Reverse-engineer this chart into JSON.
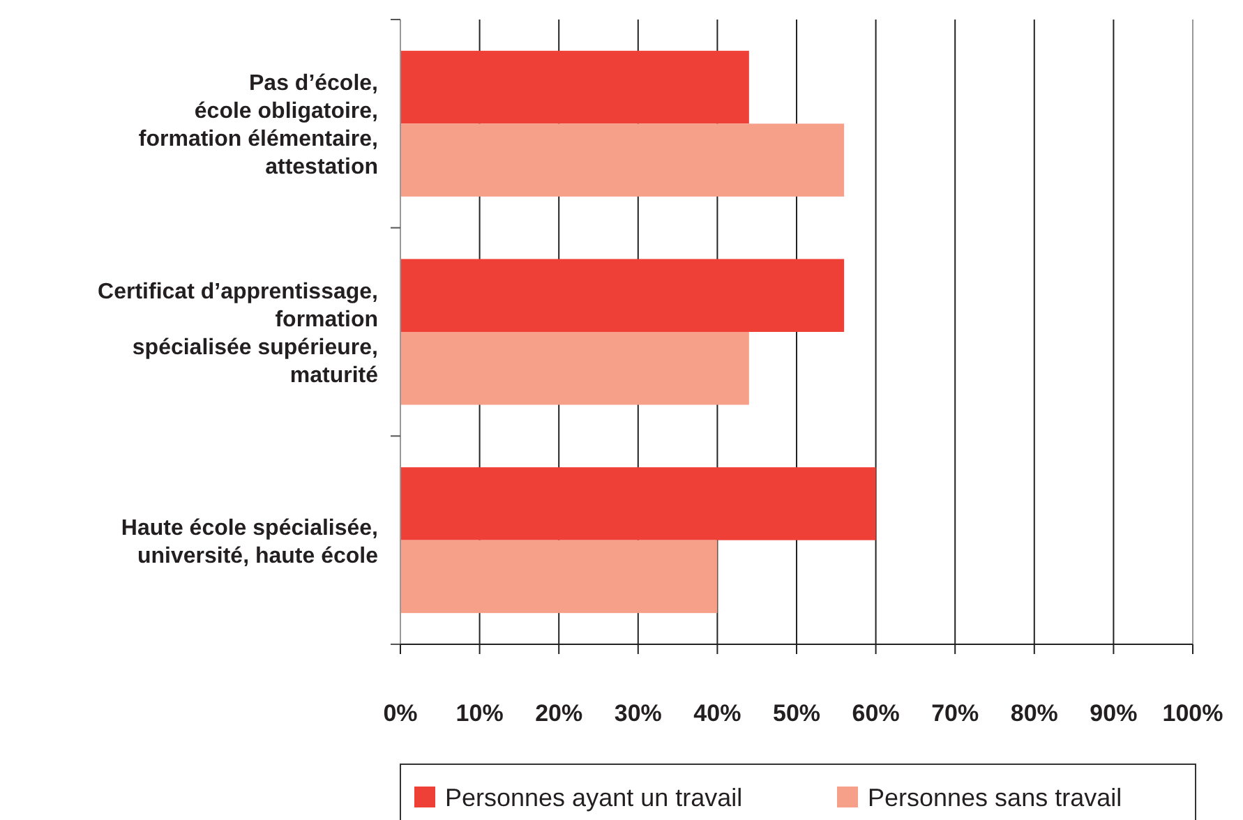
{
  "chart_data": {
    "type": "bar",
    "orientation": "horizontal",
    "categories": [
      "Pas d’école,\nécole obligatoire,\nformation élémentaire,\nattestation",
      "Certificat d’apprentissage,\nformation\nspécialisée supérieure,\nmaturité",
      "Haute école spécialisée,\nuniversité, haute école"
    ],
    "series": [
      {
        "name": "Personnes ayant un travail",
        "color": "#ee4036",
        "values": [
          44,
          56,
          60
        ]
      },
      {
        "name": "Personnes sans travail",
        "color": "#f6a089",
        "values": [
          56,
          44,
          40
        ]
      }
    ],
    "xlim": [
      0,
      100
    ],
    "xticks": [
      {
        "value": 0,
        "label": "0%"
      },
      {
        "value": 10,
        "label": "10%"
      },
      {
        "value": 20,
        "label": "20%"
      },
      {
        "value": 30,
        "label": "30%"
      },
      {
        "value": 40,
        "label": "40%"
      },
      {
        "value": 50,
        "label": "50%"
      },
      {
        "value": 60,
        "label": "60%"
      },
      {
        "value": 70,
        "label": "70%"
      },
      {
        "value": 80,
        "label": "80%"
      },
      {
        "value": 90,
        "label": "90%"
      },
      {
        "value": 100,
        "label": "100%"
      }
    ],
    "grid": "x",
    "legend": "bottom"
  }
}
